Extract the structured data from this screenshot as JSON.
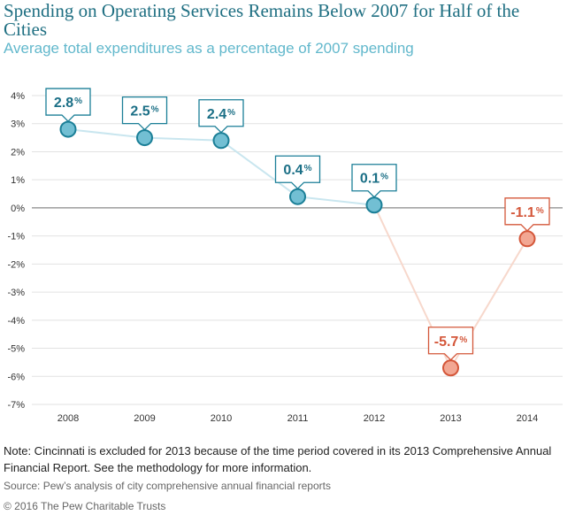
{
  "title": "Spending on Operating Services Remains Below 2007 for Half of the Cities",
  "subtitle": "Average total expenditures as a percentage of 2007 spending",
  "note": "Note: Cincinnati is excluded for 2013 because of the time period covered in its 2013 Comprehensive Annual Financial Report. See the methodology for more information.",
  "source": "Source: Pew’s analysis of city comprehensive annual financial reports",
  "copyright": "© 2016 The Pew Charitable Trusts",
  "colors": {
    "positive_line": "#c9e6ef",
    "positive_fill": "#72bfd3",
    "positive_stroke": "#1b7f97",
    "positive_text": "#1b6f86",
    "negative_line": "#f7d8cc",
    "negative_fill": "#f2a793",
    "negative_stroke": "#d4573a",
    "negative_text": "#d4573a",
    "zero_line": "#888888",
    "grid": "#e2e2e2"
  },
  "chart_data": {
    "type": "line",
    "title": "Spending on Operating Services Remains Below 2007 for Half of the Cities",
    "subtitle": "Average total expenditures as a percentage of 2007 spending",
    "xlabel": "",
    "ylabel": "",
    "categories": [
      "2008",
      "2009",
      "2010",
      "2011",
      "2012",
      "2013",
      "2014"
    ],
    "series": [
      {
        "values": [
          2.8,
          2.5,
          2.4,
          0.4,
          0.1,
          -5.7,
          -1.1
        ],
        "labels": [
          "2.8",
          "2.5",
          "2.4",
          "0.4",
          "0.1",
          "-5.7",
          "-1.1"
        ]
      }
    ],
    "label_suffix": "%",
    "ylim": [
      -7,
      4
    ],
    "yticks": [
      4,
      3,
      2,
      1,
      0,
      -1,
      -2,
      -3,
      -4,
      -5,
      -6,
      -7
    ],
    "ytick_labels": [
      "4%",
      "3%",
      "2%",
      "1%",
      "0%",
      "-1%",
      "-2%",
      "-3%",
      "-4%",
      "-5%",
      "-6%",
      "-7%"
    ],
    "grid": true,
    "legend": "none"
  }
}
